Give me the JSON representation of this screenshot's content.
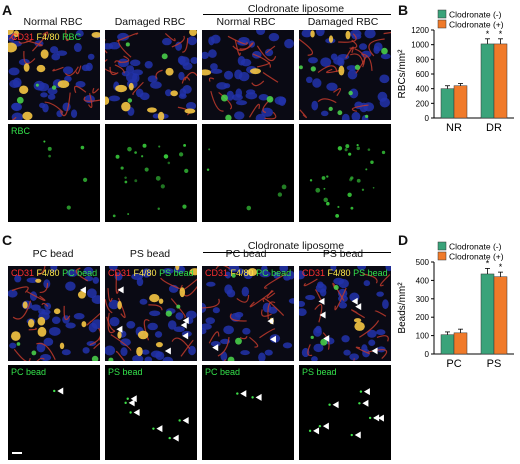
{
  "panels": {
    "A": {
      "letter": "A",
      "col_titles": [
        "Normal RBC",
        "Damaged RBC",
        "Normal RBC",
        "Damaged RBC"
      ],
      "group_title": "Clodronate liposome",
      "row1_label": {
        "cd31": "CD31",
        "f480": "F4/80",
        "rbc": "RBC"
      },
      "row2_label": "RBC"
    },
    "B": {
      "letter": "B"
    },
    "C": {
      "letter": "C",
      "col_titles": [
        "PC bead",
        "PS bead",
        "PC bead",
        "PS bead"
      ],
      "group_title": "Clodronate liposome",
      "row1_labels": [
        {
          "cd31": "CD31",
          "f480": "F4/80",
          "bead": "PC bead"
        },
        {
          "cd31": "CD31",
          "f480": "F4/80",
          "bead": "PS bead"
        },
        {
          "cd31": "CD31",
          "f480": "F4/80",
          "bead": "PC bead"
        },
        {
          "cd31": "CD31",
          "f480": "F4/80",
          "bead": "PS bead"
        }
      ],
      "row2_labels": [
        "PC bead",
        "PS bead",
        "PC bead",
        "PS bead"
      ]
    },
    "D": {
      "letter": "D"
    }
  },
  "colors": {
    "clodronate_minus": "#3aa37a",
    "clodronate_plus": "#f07a2a",
    "red": "#ff3030",
    "yellow": "#ffe84a",
    "green": "#33e04a"
  },
  "chart_data": [
    {
      "type": "bar",
      "ylabel": "RBCs/mm²",
      "categories": [
        "NR",
        "DR"
      ],
      "ylim": [
        0,
        1200
      ],
      "yticks": [
        "0",
        "200",
        "400",
        "600",
        "800",
        "1000",
        "1200"
      ],
      "legend": [
        "Clodronate (-)",
        "Clodronate (+)"
      ],
      "legend_position": "top-left",
      "series": [
        {
          "name": "Clodronate (-)",
          "values": [
            400,
            1010
          ],
          "errors": [
            40,
            70
          ]
        },
        {
          "name": "Clodronate (+)",
          "values": [
            440,
            1010
          ],
          "errors": [
            30,
            70
          ]
        }
      ],
      "annotations": [
        "*",
        "*"
      ]
    },
    {
      "type": "bar",
      "ylabel": "Beads/mm²",
      "categories": [
        "PC",
        "PS"
      ],
      "ylim": [
        0,
        500
      ],
      "yticks": [
        "0",
        "100",
        "200",
        "300",
        "400",
        "500"
      ],
      "legend": [
        "Clodronate (-)",
        "Clodronate (+)"
      ],
      "legend_position": "top-left",
      "series": [
        {
          "name": "Clodronate (-)",
          "values": [
            105,
            435
          ],
          "errors": [
            15,
            30
          ]
        },
        {
          "name": "Clodronate (+)",
          "values": [
            115,
            420
          ],
          "errors": [
            20,
            25
          ]
        }
      ],
      "annotations": [
        "*",
        "*"
      ]
    }
  ]
}
